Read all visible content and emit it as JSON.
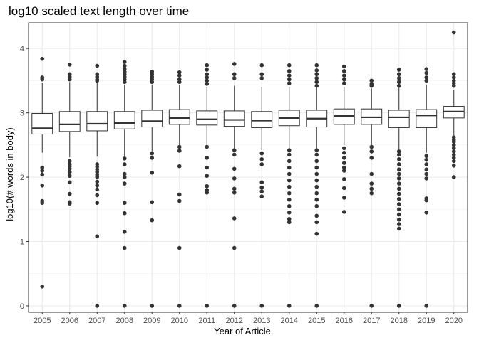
{
  "chart_data": {
    "type": "box",
    "title": "log10 scaled text length over time",
    "xlabel": "Year of Article",
    "ylabel": "log10(# words in body)",
    "ylim": [
      -0.1,
      4.4
    ],
    "yticks": [
      "0",
      "1",
      "2",
      "3",
      "4"
    ],
    "categories": [
      "2005",
      "2006",
      "2007",
      "2008",
      "2009",
      "2010",
      "2011",
      "2012",
      "2013",
      "2014",
      "2015",
      "2016",
      "2017",
      "2018",
      "2019",
      "2020"
    ],
    "grid": true,
    "theme": "bw",
    "boxes": [
      {
        "x": "2005",
        "lower_whisker": 2.38,
        "q1": 2.67,
        "median": 2.76,
        "q3": 2.99,
        "upper_whisker": 3.47,
        "outliers": [
          3.84,
          3.55,
          3.52,
          2.15,
          2.1,
          2.04,
          1.87,
          1.63,
          1.6,
          0.3
        ]
      },
      {
        "x": "2006",
        "lower_whisker": 2.31,
        "q1": 2.71,
        "median": 2.82,
        "q3": 3.02,
        "upper_whisker": 3.48,
        "outliers": [
          3.75,
          3.6,
          3.56,
          3.52,
          2.25,
          2.2,
          2.17,
          2.13,
          2.08,
          2.02,
          1.92,
          1.74,
          1.61,
          1.59
        ]
      },
      {
        "x": "2007",
        "lower_whisker": 2.32,
        "q1": 2.72,
        "median": 2.83,
        "q3": 3.02,
        "upper_whisker": 3.46,
        "outliers": [
          3.73,
          3.6,
          3.56,
          3.52,
          3.5,
          2.2,
          2.16,
          2.12,
          2.08,
          2.04,
          2.0,
          1.93,
          1.87,
          1.81,
          1.72,
          1.6,
          1.08,
          0.0
        ]
      },
      {
        "x": "2008",
        "lower_whisker": 2.32,
        "q1": 2.75,
        "median": 2.84,
        "q3": 3.02,
        "upper_whisker": 3.44,
        "outliers": [
          3.79,
          3.73,
          3.68,
          3.64,
          3.6,
          3.56,
          3.52,
          3.48,
          2.29,
          2.2,
          2.05,
          2.0,
          1.9,
          1.6,
          1.44,
          1.15,
          0.9,
          0.0
        ]
      },
      {
        "x": "2009",
        "lower_whisker": 2.4,
        "q1": 2.78,
        "median": 2.87,
        "q3": 3.04,
        "upper_whisker": 3.44,
        "outliers": [
          3.64,
          3.6,
          3.56,
          3.52,
          3.48,
          2.37,
          2.3,
          2.07,
          1.61,
          1.33,
          0.0
        ]
      },
      {
        "x": "2010",
        "lower_whisker": 2.5,
        "q1": 2.82,
        "median": 2.92,
        "q3": 3.05,
        "upper_whisker": 3.43,
        "outliers": [
          3.63,
          3.58,
          3.52,
          3.48,
          2.47,
          2.41,
          2.17,
          1.73,
          1.63,
          0.9,
          0.0
        ]
      },
      {
        "x": "2011",
        "lower_whisker": 2.48,
        "q1": 2.81,
        "median": 2.9,
        "q3": 3.03,
        "upper_whisker": 3.4,
        "outliers": [
          3.74,
          3.67,
          3.6,
          3.55,
          3.5,
          3.45,
          2.47,
          2.3,
          2.15,
          2.02,
          1.86,
          1.8,
          1.76,
          0.0
        ]
      },
      {
        "x": "2012",
        "lower_whisker": 2.45,
        "q1": 2.79,
        "median": 2.89,
        "q3": 3.03,
        "upper_whisker": 3.42,
        "outliers": [
          3.76,
          3.6,
          3.54,
          2.42,
          2.35,
          2.13,
          1.98,
          1.82,
          1.76,
          1.36,
          0.9,
          0.0
        ]
      },
      {
        "x": "2013",
        "lower_whisker": 2.42,
        "q1": 2.77,
        "median": 2.88,
        "q3": 3.02,
        "upper_whisker": 3.4,
        "outliers": [
          3.74,
          3.6,
          3.54,
          2.37,
          2.28,
          2.2,
          1.92,
          1.84,
          1.78,
          1.7,
          0.0
        ]
      },
      {
        "x": "2014",
        "lower_whisker": 2.45,
        "q1": 2.8,
        "median": 2.92,
        "q3": 3.04,
        "upper_whisker": 3.4,
        "outliers": [
          3.74,
          3.65,
          3.58,
          3.52,
          3.46,
          2.42,
          2.35,
          2.25,
          2.15,
          2.05,
          1.95,
          1.85,
          1.75,
          1.65,
          1.55,
          1.45,
          1.35,
          1.3,
          0.0
        ]
      },
      {
        "x": "2015",
        "lower_whisker": 2.45,
        "q1": 2.78,
        "median": 2.91,
        "q3": 3.04,
        "upper_whisker": 3.4,
        "outliers": [
          3.74,
          3.66,
          3.6,
          3.54,
          3.48,
          3.42,
          2.42,
          2.35,
          2.25,
          2.15,
          2.05,
          1.95,
          1.85,
          1.75,
          1.65,
          1.55,
          1.4,
          1.3,
          1.12,
          0.0
        ]
      },
      {
        "x": "2016",
        "lower_whisker": 2.5,
        "q1": 2.82,
        "median": 2.95,
        "q3": 3.06,
        "upper_whisker": 3.4,
        "outliers": [
          3.72,
          3.65,
          3.58,
          3.52,
          3.46,
          2.45,
          2.38,
          2.3,
          2.22,
          2.15,
          2.1,
          1.97,
          1.83,
          1.68,
          1.46
        ]
      },
      {
        "x": "2017",
        "lower_whisker": 2.5,
        "q1": 2.82,
        "median": 2.93,
        "q3": 3.06,
        "upper_whisker": 3.38,
        "outliers": [
          3.5,
          3.45,
          3.42,
          2.47,
          2.4,
          2.3,
          2.05,
          1.9,
          1.82,
          1.75,
          0.0
        ]
      },
      {
        "x": "2018",
        "lower_whisker": 2.42,
        "q1": 2.77,
        "median": 2.93,
        "q3": 3.04,
        "upper_whisker": 3.4,
        "outliers": [
          3.67,
          3.6,
          3.54,
          3.48,
          3.42,
          2.4,
          2.35,
          2.28,
          2.2,
          2.12,
          2.05,
          1.98,
          1.9,
          1.82,
          1.74,
          1.66,
          1.58,
          1.5,
          1.42,
          1.34,
          1.27,
          1.2,
          0.0
        ]
      },
      {
        "x": "2019",
        "lower_whisker": 2.38,
        "q1": 2.77,
        "median": 2.96,
        "q3": 3.05,
        "upper_whisker": 3.44,
        "outliers": [
          3.68,
          3.62,
          3.55,
          3.5,
          2.33,
          2.27,
          2.2,
          2.12,
          2.05,
          1.98,
          1.67,
          1.64,
          1.45,
          0.0
        ]
      },
      {
        "x": "2020",
        "lower_whisker": 2.65,
        "q1": 2.92,
        "median": 3.02,
        "q3": 3.1,
        "upper_whisker": 3.35,
        "outliers": [
          4.25,
          3.6,
          3.55,
          3.5,
          3.46,
          3.42,
          2.62,
          2.58,
          2.55,
          2.5,
          2.45,
          2.4,
          2.35,
          2.3,
          2.25,
          2.18,
          2.0
        ]
      }
    ]
  }
}
